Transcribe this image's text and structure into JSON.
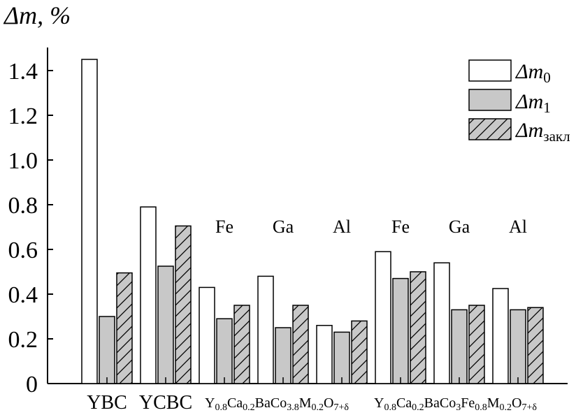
{
  "chart_data": {
    "type": "bar",
    "ylabel": "Δm, %",
    "ylim": [
      0,
      1.5
    ],
    "yticks": [
      "0",
      "0.2",
      "0.4",
      "0.6",
      "0.8",
      "1.0",
      "1.2",
      "1.4"
    ],
    "legend_position": "top-right",
    "series": [
      {
        "name": "Δm0",
        "fill": "white",
        "hatch": false,
        "values": [
          1.45,
          0.79,
          0.43,
          0.48,
          0.26,
          0.59,
          0.54,
          0.425
        ]
      },
      {
        "name": "Δm1",
        "fill": "gray",
        "hatch": false,
        "values": [
          0.3,
          0.525,
          0.29,
          0.25,
          0.23,
          0.47,
          0.33,
          0.33
        ]
      },
      {
        "name": "Δmзакл",
        "fill": "gray",
        "hatch": true,
        "values": [
          0.495,
          0.705,
          0.35,
          0.35,
          0.28,
          0.5,
          0.35,
          0.34
        ]
      }
    ],
    "categories": [
      "YBC",
      "YCBC",
      "Fe",
      "Ga",
      "Al",
      "Fe",
      "Ga",
      "Al"
    ],
    "annotations": [
      "Fe",
      "Ga",
      "Al",
      "Fe",
      "Ga",
      "Al"
    ],
    "formula_groups": [
      {
        "parts": [
          [
            "Y",
            "0.8"
          ],
          [
            "Ca",
            "0.2"
          ],
          [
            "BaCo",
            "3.8"
          ],
          [
            "M",
            "0.2"
          ],
          [
            "O",
            "7+δ"
          ]
        ]
      },
      {
        "parts": [
          [
            "Y",
            "0.8"
          ],
          [
            "Ca",
            "0.2"
          ],
          [
            "BaCo",
            "3"
          ],
          [
            "Fe",
            "0.8"
          ],
          [
            "M",
            "0.2"
          ],
          [
            "O",
            "7+δ"
          ]
        ]
      }
    ],
    "group_labels": [
      "YBC",
      "YCBC"
    ]
  },
  "colors": {
    "bar_white": "#ffffff",
    "bar_gray": "#c8c8c8",
    "stroke": "#000000"
  }
}
